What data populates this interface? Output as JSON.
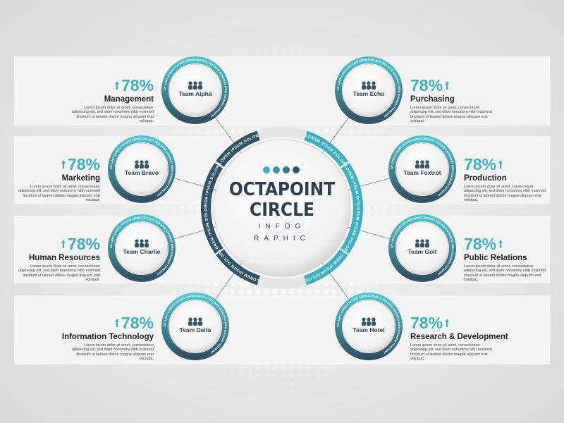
{
  "center": {
    "title_line1": "OCTAPOINT",
    "title_line2": "CIRCLE",
    "subtitle_line1": "INFOG",
    "subtitle_line2": "RAPHIC",
    "ring_label": "LOREM IPSUM DOLOR"
  },
  "ring_text": "SIT AMET, CONSECTETUER ADIPISCING ELIT, SED DIAM NONUMMY NIBH EUISMOD TINCIDUNT",
  "teams": [
    {
      "name": "Team Alpha",
      "percent": "78%",
      "department": "Management",
      "description": "Lorem ipsum dolor sit amet, consectetuer adipiscing elit, sed diam nonummy nibh euismod tincidunt ut laoreet dolore magna aliquam erat volutpat."
    },
    {
      "name": "Team Echo",
      "percent": "78%",
      "department": "Purchasing",
      "description": "Lorem ipsum dolor sit amet, consectetuer adipiscing elit, sed diam nonummy nibh euismod tincidunt ut laoreet dolore magna aliquam erat volutpat."
    },
    {
      "name": "Team Bravo",
      "percent": "78%",
      "department": "Marketing",
      "description": "Lorem ipsum dolor sit amet, consectetuer adipiscing elit, sed diam nonummy nibh euismod tincidunt ut laoreet dolore magna aliquam erat volutpat."
    },
    {
      "name": "Team Foxtrot",
      "percent": "78%",
      "department": "Production",
      "description": "Lorem ipsum dolor sit amet, consectetuer adipiscing elit, sed diam nonummy nibh euismod tincidunt ut laoreet dolore magna aliquam erat volutpat."
    },
    {
      "name": "Team Charlie",
      "percent": "78%",
      "department": "Human Resources",
      "description": "Lorem ipsum dolor sit amet, consectetuer adipiscing elit, sed diam nonummy nibh euismod tincidunt ut laoreet dolore magna aliquam erat volutpat."
    },
    {
      "name": "Team Golf",
      "percent": "78%",
      "department": "Public Relations",
      "description": "Lorem ipsum dolor sit amet, consectetuer adipiscing elit, sed diam nonummy nibh euismod tincidunt ut laoreet dolore magna aliquam erat volutpat."
    },
    {
      "name": "Team Delta",
      "percent": "78%",
      "department": "Information Technology",
      "description": "Lorem ipsum dolor sit amet, consectetuer adipiscing elit, sed diam nonummy nibh euismod tincidunt ut laoreet dolore magna aliquam erat volutpat."
    },
    {
      "name": "Team Hotel",
      "percent": "78%",
      "department": "Research & Development",
      "description": "Lorem ipsum dolor sit amet, consectetuer adipiscing elit, sed diam nonummy nibh euismod tincidunt ut laoreet dolore magna aliquam erat volutpat."
    }
  ]
}
